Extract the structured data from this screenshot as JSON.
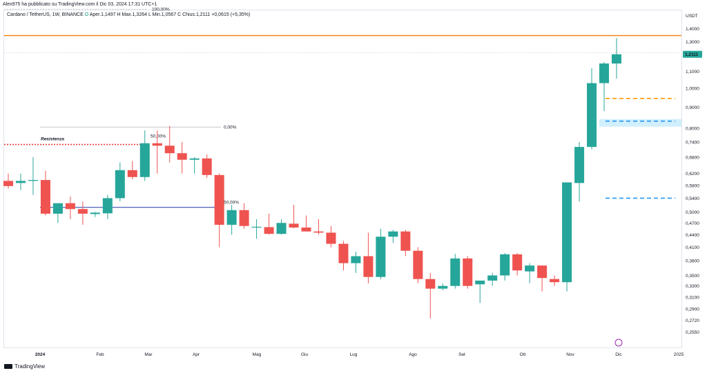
{
  "header": {
    "published_by": "Alex975 ha pubblicato su TradingView.com il Dic 03, 2024 17:31 UTC+1"
  },
  "symbol_line": {
    "name": "Cardano / TetherUS, 1W, BINANCE",
    "open_label": "O",
    "values": "Aper.1,1497  H  Max.1,3264  L  Min.1,0567  C  Chius.1,2111  +0,0615 (+5,35%)"
  },
  "currency": "USDT",
  "branding": "TradingView",
  "colors": {
    "up": "#26a69a",
    "down": "#ef5350",
    "resistance_line": "#f57c00",
    "resistance_text": "#e53935",
    "blue_line": "#1e3aa8",
    "orange_dash": "#ff9800",
    "blue_dash": "#2196f3",
    "price_tag": "#26a69a"
  },
  "chart_data": {
    "type": "candlestick",
    "title": "Cardano / TetherUS, 1W, BINANCE",
    "ylabel": "USDT",
    "y_scale": "log",
    "ylim": [
      0.24,
      1.52
    ],
    "y_ticks": [
      "1,4000",
      "1,3000",
      "1,2111",
      "1,1000",
      "1,0000",
      "0,9000",
      "0,8000",
      "0,7400",
      "0,6800",
      "0,6200",
      "0,5800",
      "0,5400",
      "0,5000",
      "0,4700",
      "0,4400",
      "0,4100",
      "0,3800",
      "0,3500",
      "0,3300",
      "0,3100",
      "0,2900",
      "0,2720",
      "0,2550"
    ],
    "x_ticks": [
      "2024",
      "Feb",
      "Mar",
      "Apr",
      "Mag",
      "Giu",
      "Lug",
      "Ago",
      "Set",
      "Ott",
      "Nov",
      "Dic",
      "2025"
    ],
    "candles": [
      {
        "o": 0.595,
        "h": 0.62,
        "l": 0.57,
        "c": 0.578
      },
      {
        "o": 0.588,
        "h": 0.62,
        "l": 0.565,
        "c": 0.595
      },
      {
        "o": 0.595,
        "h": 0.68,
        "l": 0.55,
        "c": 0.598
      },
      {
        "o": 0.598,
        "h": 0.63,
        "l": 0.49,
        "c": 0.495
      },
      {
        "o": 0.495,
        "h": 0.52,
        "l": 0.47,
        "c": 0.525
      },
      {
        "o": 0.525,
        "h": 0.545,
        "l": 0.48,
        "c": 0.508
      },
      {
        "o": 0.508,
        "h": 0.53,
        "l": 0.465,
        "c": 0.495
      },
      {
        "o": 0.494,
        "h": 0.5,
        "l": 0.486,
        "c": 0.498
      },
      {
        "o": 0.496,
        "h": 0.55,
        "l": 0.48,
        "c": 0.54
      },
      {
        "o": 0.54,
        "h": 0.66,
        "l": 0.53,
        "c": 0.632
      },
      {
        "o": 0.632,
        "h": 0.665,
        "l": 0.6,
        "c": 0.608
      },
      {
        "o": 0.608,
        "h": 0.79,
        "l": 0.595,
        "c": 0.735
      },
      {
        "o": 0.735,
        "h": 0.79,
        "l": 0.62,
        "c": 0.725
      },
      {
        "o": 0.725,
        "h": 0.81,
        "l": 0.66,
        "c": 0.695
      },
      {
        "o": 0.695,
        "h": 0.74,
        "l": 0.62,
        "c": 0.67
      },
      {
        "o": 0.67,
        "h": 0.68,
        "l": 0.62,
        "c": 0.675
      },
      {
        "o": 0.675,
        "h": 0.69,
        "l": 0.605,
        "c": 0.615
      },
      {
        "o": 0.615,
        "h": 0.62,
        "l": 0.41,
        "c": 0.465
      },
      {
        "o": 0.465,
        "h": 0.52,
        "l": 0.44,
        "c": 0.505
      },
      {
        "o": 0.505,
        "h": 0.525,
        "l": 0.455,
        "c": 0.462
      },
      {
        "o": 0.458,
        "h": 0.48,
        "l": 0.43,
        "c": 0.46
      },
      {
        "o": 0.459,
        "h": 0.495,
        "l": 0.44,
        "c": 0.442
      },
      {
        "o": 0.442,
        "h": 0.48,
        "l": 0.44,
        "c": 0.47
      },
      {
        "o": 0.468,
        "h": 0.52,
        "l": 0.456,
        "c": 0.458
      },
      {
        "o": 0.458,
        "h": 0.49,
        "l": 0.45,
        "c": 0.448
      },
      {
        "o": 0.448,
        "h": 0.48,
        "l": 0.44,
        "c": 0.445
      },
      {
        "o": 0.445,
        "h": 0.462,
        "l": 0.41,
        "c": 0.418
      },
      {
        "o": 0.418,
        "h": 0.425,
        "l": 0.36,
        "c": 0.375
      },
      {
        "o": 0.375,
        "h": 0.4,
        "l": 0.355,
        "c": 0.39
      },
      {
        "o": 0.39,
        "h": 0.445,
        "l": 0.335,
        "c": 0.347
      },
      {
        "o": 0.347,
        "h": 0.455,
        "l": 0.343,
        "c": 0.435
      },
      {
        "o": 0.435,
        "h": 0.452,
        "l": 0.42,
        "c": 0.448
      },
      {
        "o": 0.448,
        "h": 0.452,
        "l": 0.39,
        "c": 0.402
      },
      {
        "o": 0.402,
        "h": 0.41,
        "l": 0.335,
        "c": 0.343
      },
      {
        "o": 0.343,
        "h": 0.355,
        "l": 0.275,
        "c": 0.325
      },
      {
        "o": 0.325,
        "h": 0.335,
        "l": 0.322,
        "c": 0.33
      },
      {
        "o": 0.33,
        "h": 0.395,
        "l": 0.325,
        "c": 0.385
      },
      {
        "o": 0.385,
        "h": 0.39,
        "l": 0.325,
        "c": 0.33
      },
      {
        "o": 0.333,
        "h": 0.34,
        "l": 0.3,
        "c": 0.34
      },
      {
        "o": 0.34,
        "h": 0.355,
        "l": 0.33,
        "c": 0.35
      },
      {
        "o": 0.35,
        "h": 0.397,
        "l": 0.34,
        "c": 0.394
      },
      {
        "o": 0.394,
        "h": 0.397,
        "l": 0.35,
        "c": 0.36
      },
      {
        "o": 0.358,
        "h": 0.375,
        "l": 0.335,
        "c": 0.37
      },
      {
        "o": 0.37,
        "h": 0.37,
        "l": 0.32,
        "c": 0.345
      },
      {
        "o": 0.343,
        "h": 0.35,
        "l": 0.33,
        "c": 0.337
      },
      {
        "o": 0.337,
        "h": 0.59,
        "l": 0.32,
        "c": 0.59
      },
      {
        "o": 0.588,
        "h": 0.74,
        "l": 0.53,
        "c": 0.72
      },
      {
        "o": 0.72,
        "h": 1.12,
        "l": 0.71,
        "c": 1.03
      },
      {
        "o": 1.03,
        "h": 1.16,
        "l": 0.88,
        "c": 1.15
      },
      {
        "o": 1.1497,
        "h": 1.3264,
        "l": 1.0567,
        "c": 1.2111
      }
    ],
    "levels": {
      "resistance": 1.345,
      "resistance_label": "Resistenza",
      "resistance_left": 0.73,
      "fib_top_label": "100,00%",
      "fib_top": 1.56,
      "fib_zero_label": "0,00%",
      "fib_zero": 0.805,
      "fib_50_label": "50,00%",
      "fib_50_a": 0.742,
      "fib_50_blue": 0.513,
      "fib_50_blue_label": "50,00%",
      "last_price": 1.2111,
      "last_price_label": "1,2111",
      "orange_dash": 0.945,
      "blue_dash_top": 0.832,
      "blue_dash_bottom": 0.54
    }
  }
}
